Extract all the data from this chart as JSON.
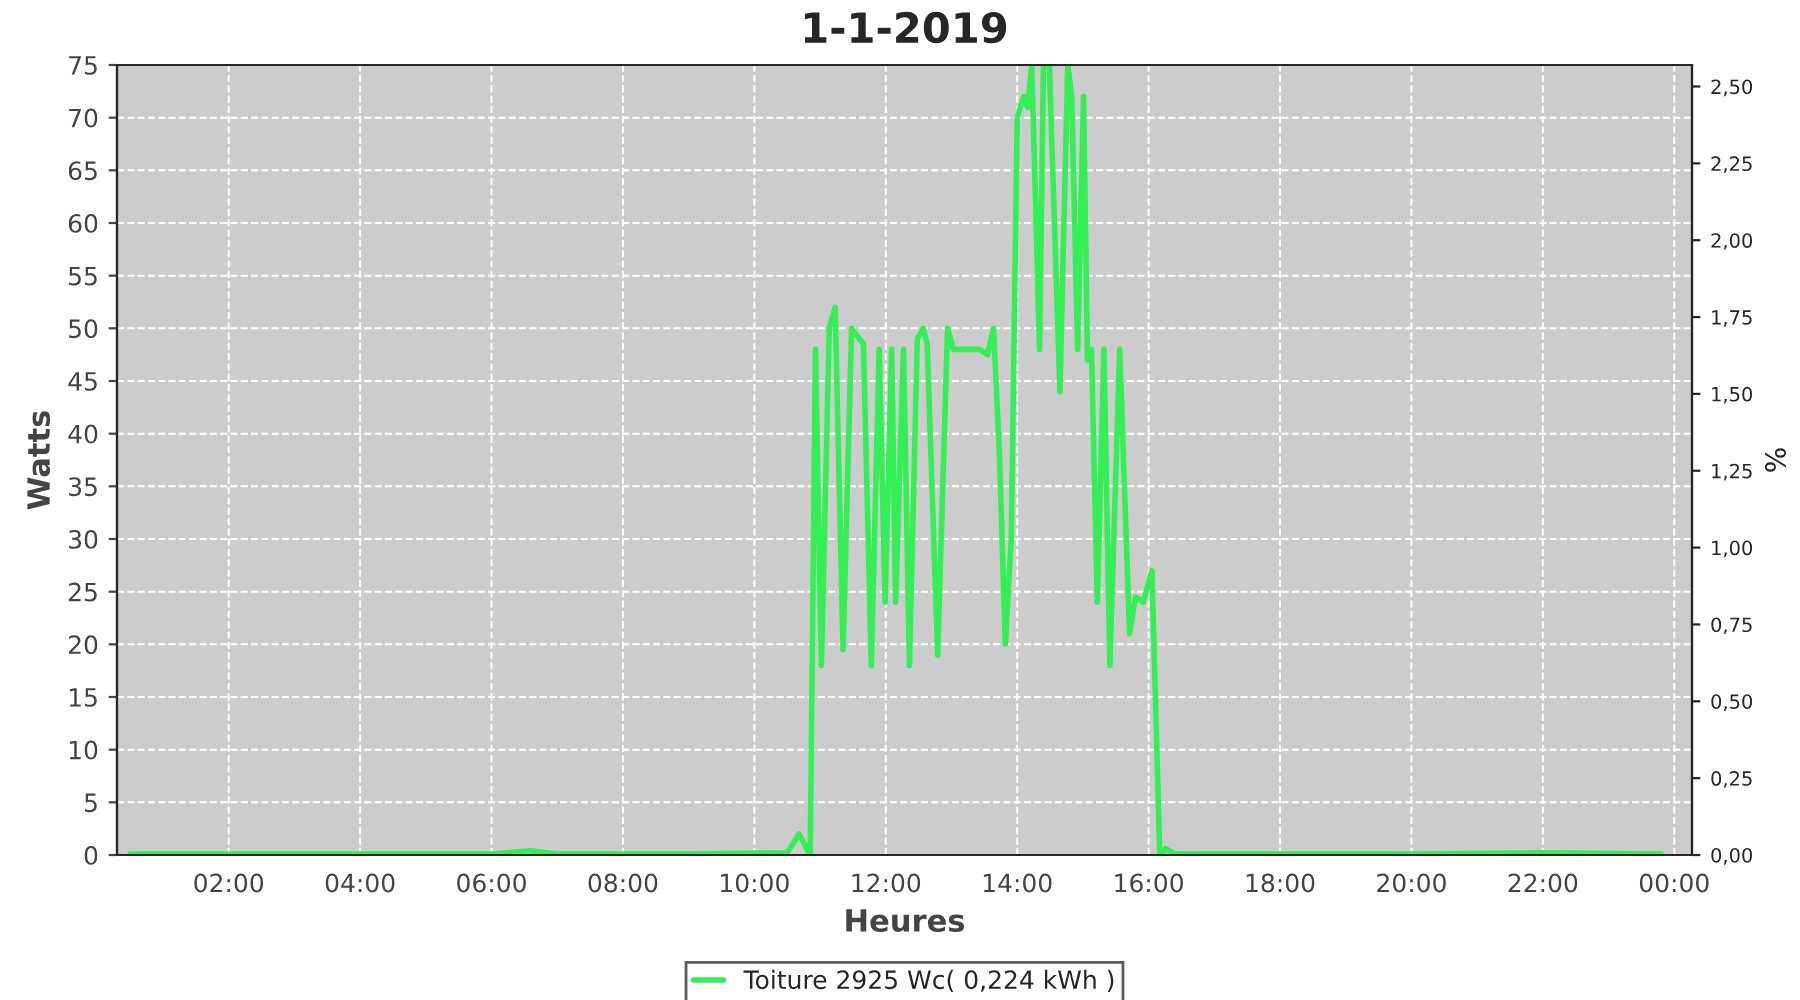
{
  "chart_data": {
    "type": "line",
    "title": "1-1-2019",
    "xlabel": "Heures",
    "ylabel": "Watts",
    "y2label": "%",
    "xlim": [
      0.3,
      24.27
    ],
    "ylim": [
      0,
      75
    ],
    "y2lim": [
      0,
      2.57
    ],
    "xticks": [
      {
        "value": 2,
        "label": "02:00"
      },
      {
        "value": 4,
        "label": "04:00"
      },
      {
        "value": 6,
        "label": "06:00"
      },
      {
        "value": 8,
        "label": "08:00"
      },
      {
        "value": 10,
        "label": "10:00"
      },
      {
        "value": 12,
        "label": "12:00"
      },
      {
        "value": 14,
        "label": "14:00"
      },
      {
        "value": 16,
        "label": "16:00"
      },
      {
        "value": 18,
        "label": "18:00"
      },
      {
        "value": 20,
        "label": "20:00"
      },
      {
        "value": 22,
        "label": "22:00"
      },
      {
        "value": 24,
        "label": "00:00"
      }
    ],
    "yticks": [
      0,
      5,
      10,
      15,
      20,
      25,
      30,
      35,
      40,
      45,
      50,
      55,
      60,
      65,
      70,
      75
    ],
    "y2ticks": [
      {
        "value": 0,
        "label": "0,00"
      },
      {
        "value": 0.25,
        "label": "0,25"
      },
      {
        "value": 0.5,
        "label": "0,50"
      },
      {
        "value": 0.75,
        "label": "0,75"
      },
      {
        "value": 1,
        "label": "1,00"
      },
      {
        "value": 1.25,
        "label": "1,25"
      },
      {
        "value": 1.5,
        "label": "1,50"
      },
      {
        "value": 1.75,
        "label": "1,75"
      },
      {
        "value": 2,
        "label": "2,00"
      },
      {
        "value": 2.25,
        "label": "2,25"
      },
      {
        "value": 2.5,
        "label": "2,50"
      }
    ],
    "grid": true,
    "legend": "bottom",
    "series": [
      {
        "name": "Toiture 2925 Wc( 0,224 kWh )",
        "color": "#33ee55",
        "x": [
          0.5,
          2,
          4,
          6,
          6.6,
          7,
          9,
          10.5,
          10.68,
          10.85,
          10.93,
          11.02,
          11.14,
          11.23,
          11.35,
          11.48,
          11.6,
          11.66,
          11.78,
          11.9,
          11.99,
          12.09,
          12.15,
          12.27,
          12.36,
          12.48,
          12.57,
          12.63,
          12.79,
          12.94,
          13.03,
          13.43,
          13.55,
          13.64,
          13.73,
          13.82,
          13.91,
          14.0,
          14.1,
          14.16,
          14.22,
          14.28,
          14.34,
          14.4,
          14.49,
          14.65,
          14.77,
          14.83,
          14.92,
          15.01,
          15.07,
          15.13,
          15.22,
          15.32,
          15.41,
          15.56,
          15.71,
          15.8,
          15.92,
          16.05,
          16.17,
          16.26,
          16.4,
          18,
          20,
          22,
          23.8
        ],
        "values": [
          0.1,
          0.1,
          0.1,
          0.1,
          0.4,
          0.1,
          0.1,
          0.2,
          2,
          0,
          48,
          18,
          50,
          52,
          19.5,
          50,
          49,
          48.5,
          18,
          48,
          24,
          48,
          24,
          48,
          18,
          49,
          50,
          48.5,
          19,
          50,
          48,
          48,
          47.5,
          50,
          38,
          20,
          30,
          70,
          72,
          71,
          75,
          62,
          48,
          75,
          75,
          44,
          75,
          72,
          48,
          72,
          47,
          48,
          24,
          48,
          18,
          48,
          21,
          24.5,
          24,
          27,
          0,
          0.6,
          0.1,
          0.1,
          0.1,
          0.2,
          0.1
        ]
      }
    ]
  }
}
